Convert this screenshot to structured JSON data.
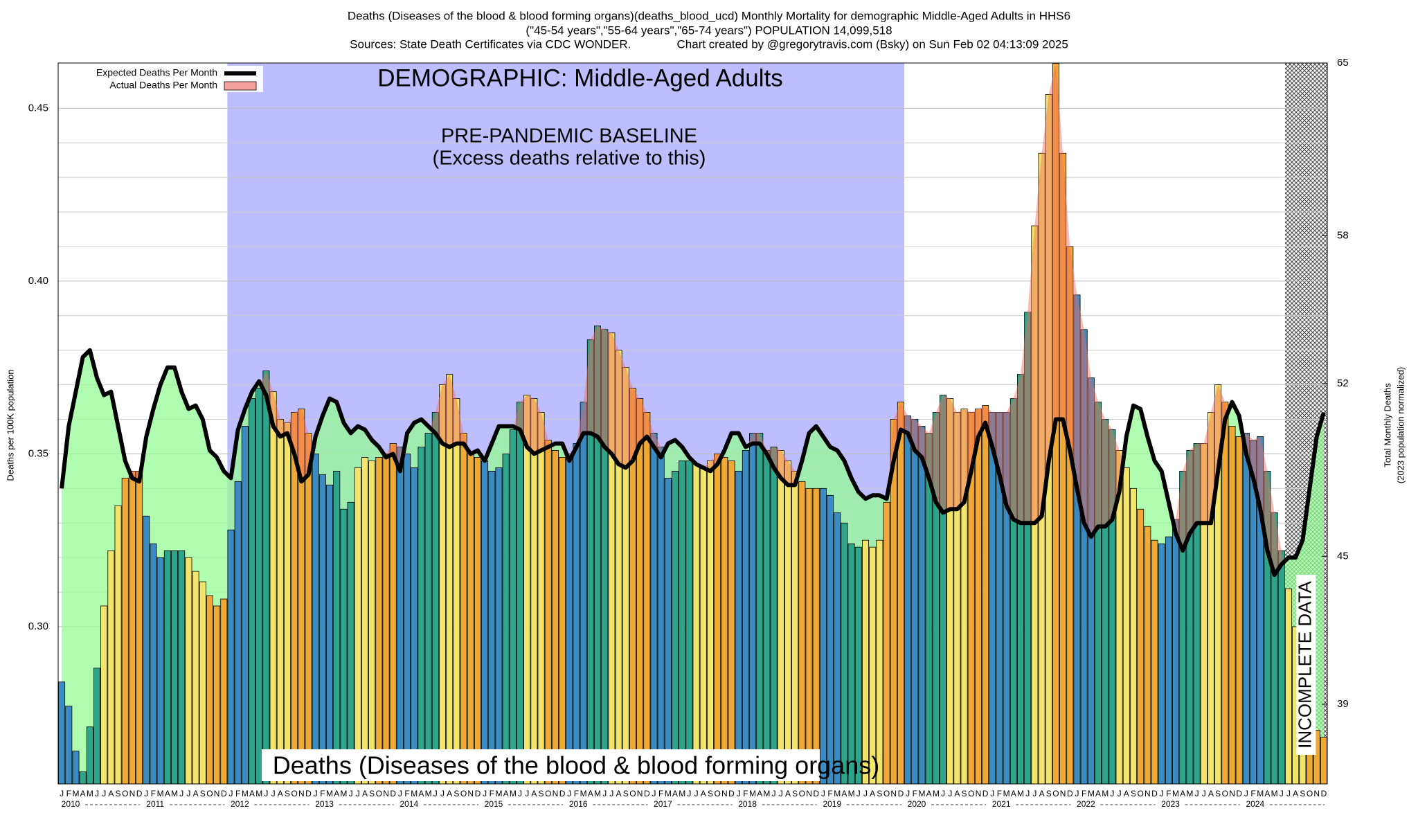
{
  "chart_data": {
    "type": "bar",
    "title": "Deaths (Diseases of the blood & blood forming organs)(deaths_blood_ucd) Monthly Mortality for demographic Middle-Aged Adults in HHS6",
    "subtitle": "(\"45-54 years\",\"55-64 years\",\"65-74 years\") POPULATION 14,099,518",
    "sources": "Sources: State Death Certificates via CDC WONDER.              Chart created by @gregorytravis.com (Bsky) on Sun Feb 02 04:13:09 2025",
    "demographic_label": "DEMOGRAPHIC: Middle-Aged Adults",
    "baseline_label": "PRE-PANDEMIC BASELINE",
    "baseline_note": "(Excess deaths relative to this)",
    "baseline_range": [
      24,
      120
    ],
    "incomplete_label": "INCOMPLETE DATA",
    "incomplete_range": [
      174,
      180
    ],
    "bottom_label": "Deaths (Diseases of the blood & blood forming organs)",
    "y_label": "Deaths per 100K population",
    "y2_label": [
      "Total Monthly Deaths",
      "(2023 population normalized)"
    ],
    "categories": [
      "J",
      "F",
      "M",
      "A",
      "M",
      "J",
      "J",
      "A",
      "S",
      "O",
      "N",
      "D",
      "J",
      "F",
      "M",
      "A",
      "M",
      "J",
      "J",
      "A",
      "S",
      "O",
      "N",
      "D",
      "J",
      "F",
      "M",
      "A",
      "M",
      "J",
      "J",
      "A",
      "S",
      "O",
      "N",
      "D",
      "J",
      "F",
      "M",
      "A",
      "M",
      "J",
      "J",
      "A",
      "S",
      "O",
      "N",
      "D",
      "J",
      "F",
      "M",
      "A",
      "M",
      "J",
      "J",
      "A",
      "S",
      "O",
      "N",
      "D",
      "J",
      "F",
      "M",
      "A",
      "M",
      "J",
      "J",
      "A",
      "S",
      "O",
      "N",
      "D",
      "J",
      "F",
      "M",
      "A",
      "M",
      "J",
      "J",
      "A",
      "S",
      "O",
      "N",
      "D",
      "J",
      "F",
      "M",
      "A",
      "M",
      "J",
      "J",
      "A",
      "S",
      "O",
      "N",
      "D",
      "J",
      "F",
      "M",
      "A",
      "M",
      "J",
      "J",
      "A",
      "S",
      "O",
      "N",
      "D",
      "J",
      "F",
      "M",
      "A",
      "M",
      "J",
      "J",
      "A",
      "S",
      "O",
      "N",
      "D",
      "J",
      "F",
      "M",
      "A",
      "M",
      "J",
      "J",
      "A",
      "S",
      "O",
      "N",
      "D",
      "J",
      "F",
      "M",
      "A",
      "M",
      "J",
      "J",
      "A",
      "S",
      "O",
      "N",
      "D",
      "J",
      "F",
      "M",
      "A",
      "M",
      "J",
      "J",
      "A",
      "S",
      "O",
      "N",
      "D",
      "J",
      "F",
      "M",
      "A",
      "M",
      "J",
      "J",
      "A",
      "S",
      "O",
      "N",
      "D",
      "J",
      "F",
      "M",
      "A",
      "M",
      "J",
      "J",
      "A",
      "S",
      "O",
      "N",
      "D"
    ],
    "years": [
      "2010",
      "2011",
      "2012",
      "2013",
      "2014",
      "2015",
      "2016",
      "2017",
      "2018",
      "2019",
      "2020",
      "2021",
      "2022",
      "2023",
      "2024"
    ],
    "bar_colors": [
      "#3b8bc2",
      "#2ea58a",
      "#f3e46c",
      "#f0a936"
    ],
    "series": [
      {
        "name": "Expected Deaths Per Month",
        "color": "#000000",
        "values": [
          0.34,
          0.358,
          0.368,
          0.378,
          0.38,
          0.372,
          0.367,
          0.368,
          0.358,
          0.348,
          0.343,
          0.342,
          0.355,
          0.363,
          0.37,
          0.375,
          0.375,
          0.368,
          0.363,
          0.364,
          0.36,
          0.351,
          0.349,
          0.345,
          0.343,
          0.357,
          0.363,
          0.368,
          0.371,
          0.367,
          0.358,
          0.355,
          0.356,
          0.35,
          0.342,
          0.344,
          0.355,
          0.361,
          0.366,
          0.365,
          0.359,
          0.356,
          0.358,
          0.357,
          0.354,
          0.352,
          0.349,
          0.35,
          0.345,
          0.356,
          0.359,
          0.36,
          0.358,
          0.356,
          0.353,
          0.352,
          0.353,
          0.353,
          0.35,
          0.351,
          0.348,
          0.353,
          0.358,
          0.358,
          0.358,
          0.357,
          0.352,
          0.35,
          0.351,
          0.352,
          0.353,
          0.353,
          0.348,
          0.352,
          0.356,
          0.356,
          0.355,
          0.352,
          0.35,
          0.347,
          0.346,
          0.348,
          0.353,
          0.355,
          0.352,
          0.349,
          0.353,
          0.354,
          0.352,
          0.349,
          0.347,
          0.346,
          0.345,
          0.347,
          0.351,
          0.356,
          0.356,
          0.352,
          0.353,
          0.353,
          0.35,
          0.346,
          0.343,
          0.341,
          0.341,
          0.348,
          0.356,
          0.358,
          0.355,
          0.352,
          0.351,
          0.348,
          0.343,
          0.339,
          0.337,
          0.338,
          0.338,
          0.337,
          0.348,
          0.357,
          0.356,
          0.351,
          0.349,
          0.343,
          0.336,
          0.333,
          0.334,
          0.334,
          0.336,
          0.345,
          0.355,
          0.359,
          0.352,
          0.344,
          0.335,
          0.331,
          0.33,
          0.33,
          0.33,
          0.332,
          0.348,
          0.36,
          0.36,
          0.351,
          0.34,
          0.33,
          0.326,
          0.329,
          0.329,
          0.331,
          0.339,
          0.355,
          0.364,
          0.363,
          0.355,
          0.348,
          0.345,
          0.336,
          0.327,
          0.322,
          0.327,
          0.33,
          0.33,
          0.33,
          0.345,
          0.36,
          0.365,
          0.361,
          0.35,
          0.343,
          0.334,
          0.322,
          0.315,
          0.318,
          0.32,
          0.32,
          0.325,
          0.34,
          0.355,
          0.362
        ]
      },
      {
        "name": "Actual Deaths Per Month",
        "color": "#f4a3a0",
        "values": [
          0.284,
          0.277,
          0.264,
          0.258,
          0.271,
          0.288,
          0.306,
          0.322,
          0.335,
          0.343,
          0.345,
          0.345,
          0.332,
          0.324,
          0.32,
          0.322,
          0.322,
          0.322,
          0.32,
          0.316,
          0.313,
          0.309,
          0.306,
          0.308,
          0.328,
          0.342,
          0.358,
          0.366,
          0.369,
          0.374,
          0.368,
          0.36,
          0.359,
          0.362,
          0.363,
          0.356,
          0.35,
          0.344,
          0.341,
          0.345,
          0.334,
          0.336,
          0.346,
          0.349,
          0.348,
          0.349,
          0.35,
          0.353,
          0.352,
          0.35,
          0.346,
          0.352,
          0.356,
          0.362,
          0.37,
          0.373,
          0.366,
          0.356,
          0.35,
          0.349,
          0.348,
          0.345,
          0.346,
          0.35,
          0.357,
          0.365,
          0.367,
          0.366,
          0.362,
          0.354,
          0.351,
          0.349,
          0.35,
          0.353,
          0.365,
          0.383,
          0.387,
          0.386,
          0.385,
          0.38,
          0.375,
          0.369,
          0.366,
          0.362,
          0.356,
          0.352,
          0.343,
          0.345,
          0.348,
          0.348,
          0.347,
          0.346,
          0.348,
          0.35,
          0.349,
          0.348,
          0.345,
          0.351,
          0.356,
          0.356,
          0.351,
          0.352,
          0.351,
          0.348,
          0.345,
          0.342,
          0.34,
          0.34,
          0.34,
          0.338,
          0.333,
          0.33,
          0.324,
          0.323,
          0.325,
          0.323,
          0.325,
          0.336,
          0.36,
          0.365,
          0.361,
          0.36,
          0.358,
          0.356,
          0.362,
          0.367,
          0.366,
          0.362,
          0.363,
          0.362,
          0.363,
          0.364,
          0.362,
          0.362,
          0.362,
          0.366,
          0.373,
          0.391,
          0.416,
          0.437,
          0.454,
          0.463,
          0.437,
          0.41,
          0.396,
          0.386,
          0.372,
          0.365,
          0.36,
          0.357,
          0.351,
          0.346,
          0.34,
          0.334,
          0.329,
          0.325,
          0.324,
          0.326,
          0.331,
          0.345,
          0.351,
          0.353,
          0.353,
          0.362,
          0.37,
          0.365,
          0.358,
          0.355,
          0.356,
          0.354,
          0.355,
          0.345,
          0.333,
          0.322,
          0.311,
          0.3,
          0.288,
          0.282,
          0.27,
          0.268
        ]
      }
    ],
    "ylim": [
      0.2545,
      0.4631
    ],
    "yticks": [
      {
        "value": 0.3,
        "label": "0.30"
      },
      0.35,
      {
        "value": 0.4,
        "label": "0.40"
      },
      0.45
    ],
    "y2lim": [
      35.77,
      65
    ],
    "y2ticks": [
      39,
      45,
      52,
      58,
      65
    ],
    "grid": true,
    "legend": "top-left"
  }
}
